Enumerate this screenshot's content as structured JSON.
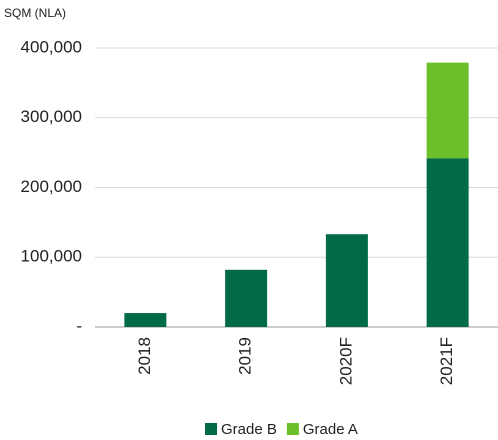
{
  "chart_data": {
    "type": "stacked_bar",
    "y_label": "SQM (NLA)",
    "categories": [
      "2018",
      "2019",
      "2020F",
      "2021F"
    ],
    "series": [
      {
        "name": "Grade B",
        "color": "#006b45",
        "values": [
          20000,
          82000,
          133000,
          242000
        ]
      },
      {
        "name": "Grade A",
        "color": "#6abf2a",
        "values": [
          null,
          null,
          null,
          137000
        ]
      }
    ],
    "ylim": [
      0,
      400000
    ],
    "yticks": [
      {
        "value": 0,
        "label": "-"
      },
      {
        "value": 100000,
        "label": "100,000"
      },
      {
        "value": 200000,
        "label": "200,000"
      },
      {
        "value": 300000,
        "label": "300,000"
      },
      {
        "value": 400000,
        "label": "400,000"
      }
    ],
    "grid": true
  }
}
